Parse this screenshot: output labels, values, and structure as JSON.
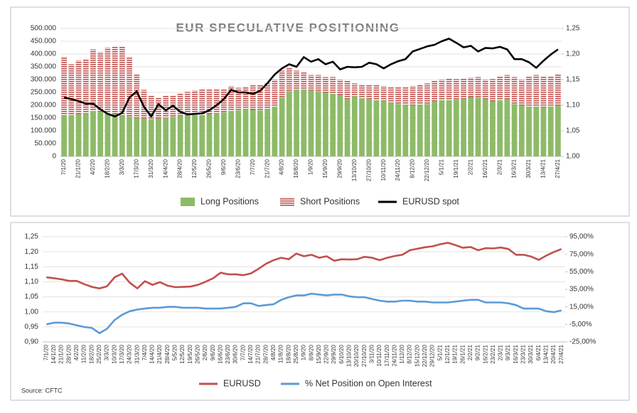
{
  "chart_data": [
    {
      "type": "bar",
      "stacked": true,
      "title": "EUR SPECULATIVE POSITIONING",
      "grid": true,
      "categories": [
        "7/1/20",
        null,
        "21/1/20",
        null,
        "4/2/20",
        null,
        "18/2/20",
        null,
        "3/3/20",
        null,
        "17/3/20",
        null,
        "31/3/20",
        null,
        "14/4/20",
        null,
        "28/4/20",
        null,
        "12/5/20",
        null,
        "26/5/20",
        null,
        "9/6/20",
        null,
        "23/6/20",
        null,
        "7/7/20",
        null,
        "21/7/20",
        null,
        "4/8/20",
        null,
        "18/8/20",
        null,
        "1/9/20",
        null,
        "15/9/20",
        null,
        "29/9/20",
        null,
        "13/10/20",
        null,
        "27/10/20",
        null,
        "10/11/20",
        null,
        "24/11/20",
        null,
        "8/12/20",
        null,
        "22/12/20",
        null,
        "5/1/21",
        null,
        "19/1/21",
        null,
        "2/2/21",
        null,
        "16/2/21",
        null,
        "2/3/21",
        null,
        "16/3/21",
        null,
        "30/3/21",
        null,
        "13/4/21",
        null,
        "27/4/21"
      ],
      "ylim": [
        0,
        500000
      ],
      "yticks": [
        0,
        {
          "value": 50000,
          "label": "50.000"
        },
        {
          "value": 100000,
          "label": "100.000"
        },
        {
          "value": 150000,
          "label": "150.000"
        },
        {
          "value": 200000,
          "label": "200.000"
        },
        {
          "value": 250000,
          "label": "250.000"
        },
        {
          "value": 300000,
          "label": "300.000"
        },
        {
          "value": 350000,
          "label": "350.000"
        },
        {
          "value": 400000,
          "label": "400.000"
        },
        {
          "value": 450000,
          "label": "450.000"
        },
        {
          "value": 500000,
          "label": "500.000"
        }
      ],
      "y2lim": [
        1,
        1.25
      ],
      "y2ticks": [
        {
          "value": 1,
          "label": "1,00"
        },
        {
          "value": 1.05,
          "label": "1,05"
        },
        {
          "value": 1.1,
          "label": "1,10"
        },
        {
          "value": 1.15,
          "label": "1,15"
        },
        {
          "value": 1.2,
          "label": "1,20"
        },
        {
          "value": 1.25,
          "label": "1,25"
        }
      ],
      "series": [
        {
          "name": "Long Positions",
          "color": "#8dbb68",
          "values": [
            160000,
            162000,
            165000,
            168000,
            178000,
            175000,
            170000,
            165000,
            160000,
            155000,
            150000,
            148000,
            146000,
            148000,
            152000,
            155000,
            158000,
            160000,
            162000,
            160000,
            165000,
            168000,
            172000,
            178000,
            180000,
            185000,
            182000,
            180000,
            185000,
            195000,
            230000,
            255000,
            262000,
            262000,
            258000,
            255000,
            250000,
            245000,
            240000,
            225000,
            235000,
            228000,
            225000,
            220000,
            218000,
            210000,
            205000,
            202000,
            200000,
            202000,
            205000,
            215000,
            220000,
            220000,
            222000,
            225000,
            232000,
            230000,
            225000,
            215000,
            220000,
            225000,
            205000,
            200000,
            195000,
            195000,
            192000,
            195000,
            198000
          ]
        },
        {
          "name": "Short Positions",
          "color": "#c0504d",
          "pattern": "hatch",
          "values": [
            230000,
            198000,
            210000,
            214000,
            240000,
            233000,
            255000,
            267000,
            268000,
            235000,
            170000,
            112000,
            94000,
            82000,
            86000,
            85000,
            90000,
            92000,
            96000,
            102000,
            97000,
            97000,
            90000,
            97000,
            88000,
            87000,
            100000,
            100000,
            100000,
            105000,
            105000,
            90000,
            73000,
            68000,
            60000,
            63000,
            60000,
            65000,
            60000,
            70000,
            50000,
            54000,
            55000,
            58000,
            57000,
            62000,
            67000,
            68000,
            75000,
            78000,
            80000,
            80000,
            80000,
            85000,
            80000,
            80000,
            76000,
            80000,
            75000,
            87000,
            95000,
            93000,
            105000,
            100000,
            117000,
            123000,
            123000,
            120000,
            122000
          ]
        },
        {
          "name": "EURUSD spot",
          "type": "line",
          "axis": "y2",
          "color": "#000000",
          "values": [
            1.115,
            1.112,
            1.108,
            1.103,
            1.103,
            1.092,
            1.083,
            1.078,
            1.085,
            1.115,
            1.127,
            1.097,
            1.078,
            1.102,
            1.09,
            1.099,
            1.087,
            1.082,
            1.083,
            1.084,
            1.09,
            1.1,
            1.112,
            1.13,
            1.125,
            1.125,
            1.122,
            1.128,
            1.143,
            1.16,
            1.172,
            1.18,
            1.175,
            1.194,
            1.185,
            1.19,
            1.18,
            1.185,
            1.17,
            1.175,
            1.174,
            1.175,
            1.183,
            1.18,
            1.172,
            1.18,
            1.186,
            1.19,
            1.205,
            1.21,
            1.215,
            1.218,
            1.225,
            1.23,
            1.222,
            1.213,
            1.216,
            1.205,
            1.212,
            1.211,
            1.214,
            1.209,
            1.19,
            1.19,
            1.184,
            1.173,
            1.187,
            1.199,
            1.209
          ]
        }
      ]
    },
    {
      "type": "line",
      "grid": true,
      "categories": [
        "7/1/20",
        "14/1/20",
        "21/1/20",
        "28/1/20",
        "4/2/20",
        "11/2/20",
        "18/2/20",
        "25/2/20",
        "3/3/20",
        "10/3/20",
        "17/3/20",
        "24/3/20",
        "31/3/20",
        "7/4/20",
        "14/4/20",
        "21/4/20",
        "28/4/20",
        "5/5/20",
        "12/5/20",
        "19/5/20",
        "26/5/20",
        "2/6/20",
        "9/6/20",
        "16/6/20",
        "23/6/20",
        "30/6/20",
        "7/7/20",
        "14/7/20",
        "21/7/20",
        "28/7/20",
        "4/8/20",
        "11/8/20",
        "18/8/20",
        "25/8/20",
        "1/9/20",
        "8/9/20",
        "15/9/20",
        "22/9/20",
        "29/9/20",
        "6/10/20",
        "13/10/20",
        "20/10/20",
        "27/10/20",
        "3/11/20",
        "10/11/20",
        "17/11/20",
        "24/11/20",
        "1/12/20",
        "8/12/20",
        "15/12/20",
        "22/12/20",
        "29/12/20",
        "5/1/21",
        "12/1/21",
        "19/1/21",
        "26/1/21",
        "2/2/21",
        "9/2/21",
        "16/2/21",
        "23/2/21",
        "2/3/21",
        "9/3/21",
        "16/3/21",
        "23/3/21",
        "30/3/21",
        "6/4/21",
        "13/4/21",
        "20/4/21",
        "27/4/21"
      ],
      "ylim": [
        0.9,
        1.25
      ],
      "yticks": [
        {
          "value": 0.9,
          "label": "0,90"
        },
        {
          "value": 0.95,
          "label": "0,95"
        },
        {
          "value": 1,
          "label": "1,00"
        },
        {
          "value": 1.05,
          "label": "1,05"
        },
        {
          "value": 1.1,
          "label": "1,10"
        },
        {
          "value": 1.15,
          "label": "1,15"
        },
        {
          "value": 1.2,
          "label": "1,20"
        },
        {
          "value": 1.25,
          "label": "1,25"
        }
      ],
      "y2lim": [
        -25,
        95
      ],
      "y2ticks": [
        {
          "value": -25,
          "label": "-25,00%"
        },
        {
          "value": -5,
          "label": "-5,00%"
        },
        {
          "value": 15,
          "label": "15,00%"
        },
        {
          "value": 35,
          "label": "35,00%"
        },
        {
          "value": 55,
          "label": "55,00%"
        },
        {
          "value": 75,
          "label": "75,00%"
        },
        {
          "value": 95,
          "label": "95,00%"
        }
      ],
      "series": [
        {
          "name": "EURUSD",
          "color": "#c0504d",
          "values": [
            1.115,
            1.112,
            1.108,
            1.103,
            1.103,
            1.092,
            1.083,
            1.078,
            1.085,
            1.115,
            1.127,
            1.097,
            1.078,
            1.102,
            1.09,
            1.099,
            1.087,
            1.082,
            1.083,
            1.084,
            1.09,
            1.1,
            1.112,
            1.13,
            1.125,
            1.125,
            1.122,
            1.128,
            1.143,
            1.16,
            1.172,
            1.18,
            1.175,
            1.194,
            1.185,
            1.19,
            1.18,
            1.185,
            1.17,
            1.175,
            1.174,
            1.175,
            1.183,
            1.18,
            1.172,
            1.18,
            1.186,
            1.19,
            1.205,
            1.21,
            1.215,
            1.218,
            1.225,
            1.23,
            1.222,
            1.213,
            1.216,
            1.205,
            1.212,
            1.211,
            1.214,
            1.209,
            1.19,
            1.19,
            1.184,
            1.173,
            1.187,
            1.199,
            1.209
          ]
        },
        {
          "name": "% Net Position on Open Interest",
          "axis": "y2",
          "color": "#5b9bd5",
          "values": [
            -5,
            -3,
            -3,
            -4,
            -6,
            -8,
            -9,
            -15,
            -10,
            0,
            6,
            10,
            12,
            13,
            14,
            14,
            15,
            15,
            14,
            14,
            14,
            13,
            13,
            13,
            14,
            15,
            19,
            19,
            16,
            17,
            18,
            23,
            26,
            28,
            28,
            30,
            29,
            28,
            29,
            29,
            27,
            26,
            26,
            24,
            22,
            21,
            21,
            22,
            22,
            21,
            21,
            20,
            20,
            20,
            21,
            22,
            23,
            23,
            20,
            20,
            20,
            19,
            17,
            13,
            13,
            13,
            10,
            9,
            11
          ]
        }
      ]
    }
  ],
  "source": "Source: CFTC"
}
